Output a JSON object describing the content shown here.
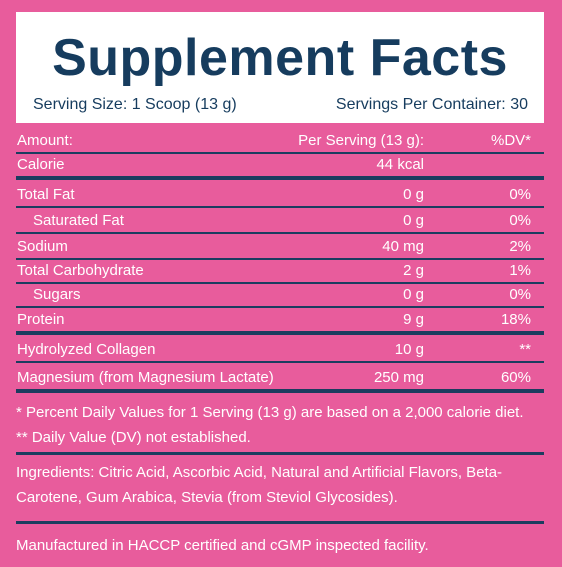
{
  "header": {
    "title": "Supplement Facts",
    "serving_size": "Serving Size: 1 Scoop (13 g)",
    "servings_per_container": "Servings Per Container: 30"
  },
  "table": {
    "columns": {
      "name": "Amount:",
      "amount": "Per Serving (13 g):",
      "dv": "%DV*"
    },
    "rows": [
      {
        "name": "Calorie",
        "amount": "44 kcal",
        "dv": ""
      },
      {
        "name": "Total Fat",
        "amount": "0 g",
        "dv": "0%"
      },
      {
        "name": "Saturated Fat",
        "amount": "0 g",
        "dv": "0%"
      },
      {
        "name": "Sodium",
        "amount": "40 mg",
        "dv": "2%"
      },
      {
        "name": "Total Carbohydrate",
        "amount": "2 g",
        "dv": "1%"
      },
      {
        "name": "Sugars",
        "amount": "0 g",
        "dv": "0%"
      },
      {
        "name": "Protein",
        "amount": "9 g",
        "dv": "18%"
      },
      {
        "name": "Hydrolyzed Collagen",
        "amount": "10 g",
        "dv": "**"
      },
      {
        "name": "Magnesium (from Magnesium Lactate)",
        "amount": "250 mg",
        "dv": "60%"
      }
    ]
  },
  "notes": {
    "dv_note": "* Percent Daily Values for 1 Serving (13 g) are based on a 2,000 calorie diet.",
    "not_established": "** Daily Value (DV) not established."
  },
  "ingredients": "Ingredients: Citric Acid, Ascorbic Acid, Natural and Artificial Flavors, Beta-Carotene, Gum Arabica, Stevia (from Steviol Glycosides).",
  "manufactured": "Manufactured in HACCP certified and cGMP inspected facility."
}
